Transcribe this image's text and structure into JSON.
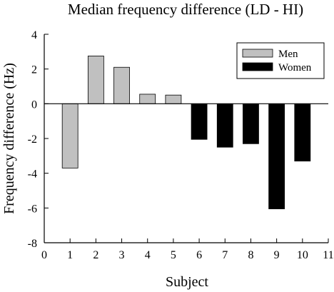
{
  "chart_data": {
    "type": "bar",
    "title": "Median frequency difference (LD - HI)",
    "xlabel": "Subject",
    "ylabel": "Frequency difference (Hz)",
    "xlim": [
      0,
      11
    ],
    "ylim": [
      -8,
      4
    ],
    "x_ticks": [
      0,
      1,
      2,
      3,
      4,
      5,
      6,
      7,
      8,
      9,
      10,
      11
    ],
    "y_ticks": [
      -8,
      -6,
      -4,
      -2,
      0,
      2,
      4
    ],
    "grid": false,
    "legend_position": "top-right",
    "series": [
      {
        "name": "Men",
        "color": "#c0c0c0",
        "x": [
          1,
          2,
          3,
          4,
          5
        ],
        "values": [
          -3.7,
          2.75,
          2.1,
          0.55,
          0.5
        ]
      },
      {
        "name": "Women",
        "color": "#000000",
        "x": [
          6,
          7,
          8,
          9,
          10
        ],
        "values": [
          -2.05,
          -2.5,
          -2.3,
          -6.05,
          -3.3
        ]
      }
    ]
  }
}
